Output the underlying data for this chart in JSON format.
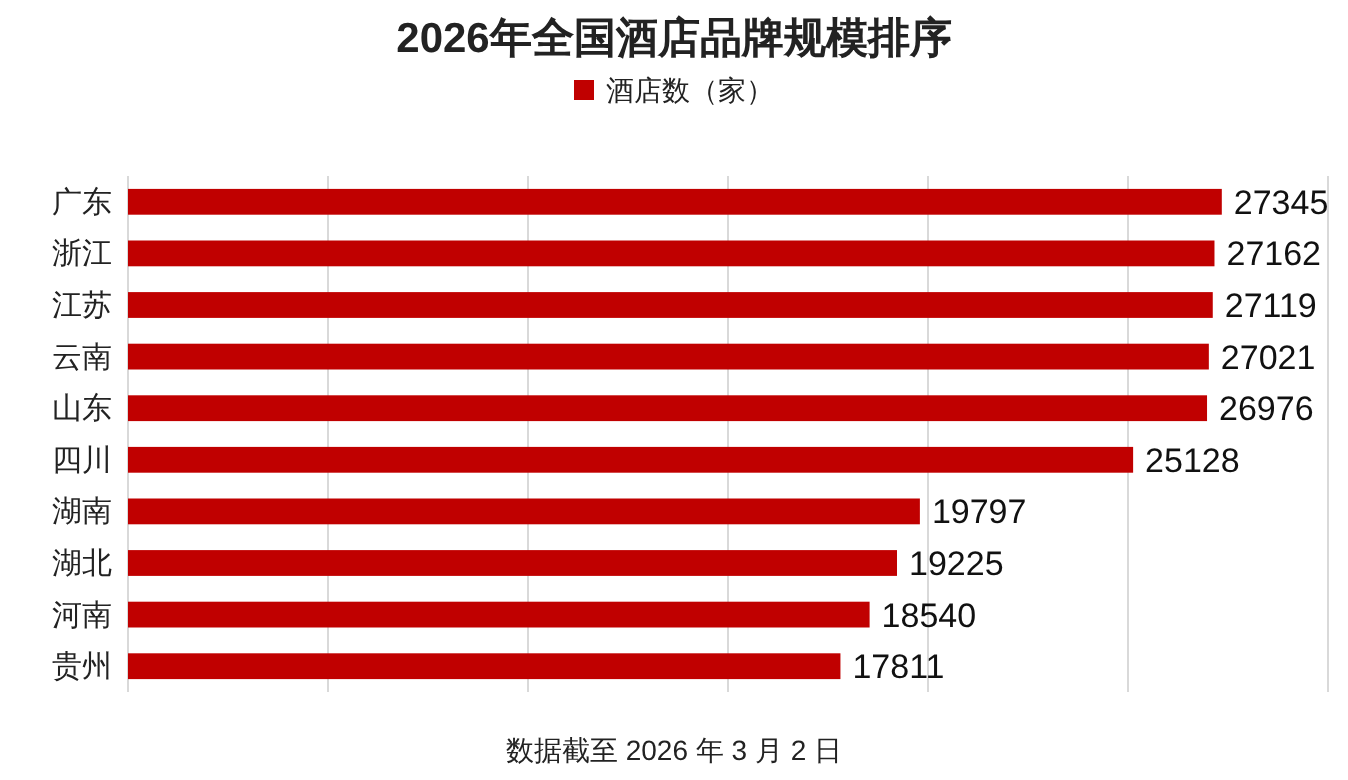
{
  "chart_data": {
    "type": "bar",
    "orientation": "horizontal",
    "title": "2026年全国酒店品牌规模排序",
    "categories": [
      "广东",
      "浙江",
      "江苏",
      "云南",
      "山东",
      "四川",
      "湖南",
      "湖北",
      "河南",
      "贵州"
    ],
    "series": [
      {
        "name": "酒店数（家）",
        "color": "#c00000",
        "values": [
          27345,
          27162,
          27119,
          27021,
          26976,
          25128,
          19797,
          19225,
          18540,
          17811
        ]
      }
    ],
    "xlim": [
      0,
      30000
    ],
    "xticks": [
      {
        "value": 0,
        "label": null
      },
      {
        "value": 5000,
        "label": null
      },
      {
        "value": 10000,
        "label": null
      },
      {
        "value": 15000,
        "label": null
      },
      {
        "value": 20000,
        "label": null
      },
      {
        "value": 25000,
        "label": null
      },
      {
        "value": 30000,
        "label": null
      }
    ],
    "grid": "x",
    "legend": "top",
    "tick_labels": "y",
    "data_labels": true,
    "annotations": [
      "数据截至 2026 年 3 月 2 日"
    ]
  }
}
